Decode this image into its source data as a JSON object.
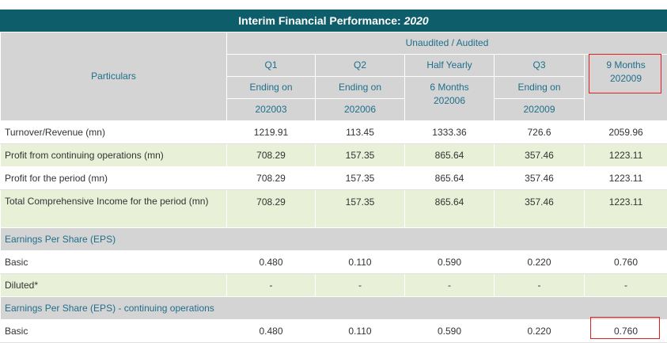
{
  "title": {
    "main": "Interim Financial Performance:",
    "year": "2020"
  },
  "header": {
    "particulars": "Particulars",
    "audit_status": "Unaudited / Audited",
    "columns": [
      {
        "l1": "Q1",
        "l2": "Ending on",
        "l3": "202003"
      },
      {
        "l1": "Q2",
        "l2": "Ending on",
        "l3": "202006"
      },
      {
        "l1": "Half Yearly",
        "l2": "6 Months",
        "l3": "202006"
      },
      {
        "l1": "Q3",
        "l2": "Ending on",
        "l3": "202009"
      },
      {
        "l1": "9 Months",
        "l2": "202009"
      }
    ]
  },
  "rows": [
    {
      "label": "Turnover/Revenue (mn)",
      "values": [
        "1219.91",
        "113.45",
        "1333.36",
        "726.6",
        "2059.96"
      ]
    },
    {
      "label": "Profit from continuing operations (mn)",
      "values": [
        "708.29",
        "157.35",
        "865.64",
        "357.46",
        "1223.11"
      ]
    },
    {
      "label": "Profit for the period (mn)",
      "values": [
        "708.29",
        "157.35",
        "865.64",
        "357.46",
        "1223.11"
      ]
    },
    {
      "label": "Total Comprehensive Income for the period (mn)",
      "values": [
        "708.29",
        "157.35",
        "865.64",
        "357.46",
        "1223.11"
      ]
    }
  ],
  "eps": {
    "section": "Earnings Per Share (EPS)",
    "basic": {
      "label": "Basic",
      "values": [
        "0.480",
        "0.110",
        "0.590",
        "0.220",
        "0.760"
      ]
    },
    "diluted": {
      "label": "Diluted*",
      "values": [
        "-",
        "-",
        "-",
        "-",
        "-"
      ]
    }
  },
  "eps_cont": {
    "section": "Earnings Per Share (EPS) - continuing operations",
    "basic": {
      "label": "Basic",
      "values": [
        "0.480",
        "0.110",
        "0.590",
        "0.220",
        "0.760"
      ]
    }
  },
  "highlight_color": "#e02020"
}
